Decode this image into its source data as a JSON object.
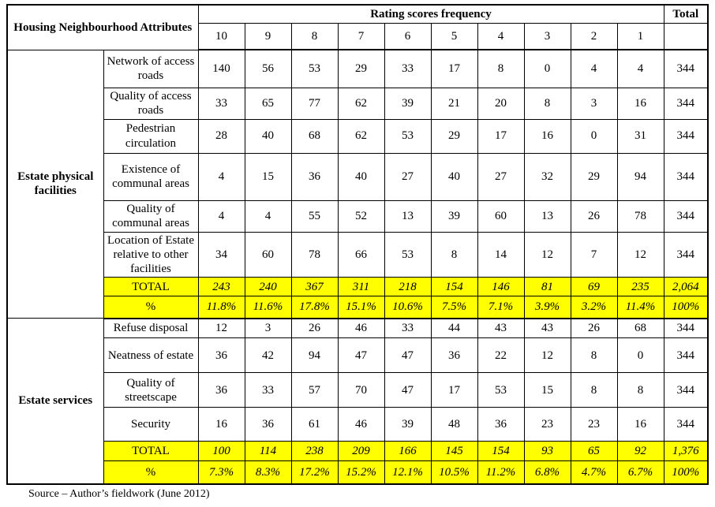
{
  "colors": {
    "highlight": "#FFFF00",
    "border": "#000000",
    "text": "#000000",
    "background": "#FFFFFF"
  },
  "table": {
    "header": {
      "attributes_label": "Housing Neighbourhood Attributes",
      "rating_label": "Rating scores frequency",
      "total_label": "Total",
      "rating_columns": [
        "10",
        "9",
        "8",
        "7",
        "6",
        "5",
        "4",
        "3",
        "2",
        "1"
      ]
    },
    "sections": [
      {
        "category": "Estate physical facilities",
        "rows": [
          {
            "label": "Network of access roads",
            "values": [
              "140",
              "56",
              "53",
              "29",
              "33",
              "17",
              "8",
              "0",
              "4",
              "4"
            ],
            "total": "344"
          },
          {
            "label": "Quality of access roads",
            "values": [
              "33",
              "65",
              "77",
              "62",
              "39",
              "21",
              "20",
              "8",
              "3",
              "16"
            ],
            "total": "344"
          },
          {
            "label": "Pedestrian circulation",
            "values": [
              "28",
              "40",
              "68",
              "62",
              "53",
              "29",
              "17",
              "16",
              "0",
              "31"
            ],
            "total": "344"
          },
          {
            "label": "Existence of communal areas",
            "values": [
              "4",
              "15",
              "36",
              "40",
              "27",
              "40",
              "27",
              "32",
              "29",
              "94"
            ],
            "total": "344"
          },
          {
            "label": "Quality of communal areas",
            "values": [
              "4",
              "4",
              "55",
              "52",
              "13",
              "39",
              "60",
              "13",
              "26",
              "78"
            ],
            "total": "344"
          },
          {
            "label": "Location of Estate relative to other facilities",
            "values": [
              "34",
              "60",
              "78",
              "66",
              "53",
              "8",
              "14",
              "12",
              "7",
              "12"
            ],
            "total": "344"
          }
        ],
        "total_row": {
          "label": "TOTAL",
          "values": [
            "243",
            "240",
            "367",
            "311",
            "218",
            "154",
            "146",
            "81",
            "69",
            "235"
          ],
          "total": "2,064"
        },
        "percent_row": {
          "label": "%",
          "values": [
            "11.8%",
            "11.6%",
            "17.8%",
            "15.1%",
            "10.6%",
            "7.5%",
            "7.1%",
            "3.9%",
            "3.2%",
            "11.4%"
          ],
          "total": "100%"
        }
      },
      {
        "category": "Estate services",
        "rows": [
          {
            "label": "Refuse disposal",
            "values": [
              "12",
              "3",
              "26",
              "46",
              "33",
              "44",
              "43",
              "43",
              "26",
              "68"
            ],
            "total": "344"
          },
          {
            "label": "Neatness of estate",
            "values": [
              "36",
              "42",
              "94",
              "47",
              "47",
              "36",
              "22",
              "12",
              "8",
              "0"
            ],
            "total": "344"
          },
          {
            "label": "Quality of streetscape",
            "values": [
              "36",
              "33",
              "57",
              "70",
              "47",
              "17",
              "53",
              "15",
              "8",
              "8"
            ],
            "total": "344"
          },
          {
            "label": "Security",
            "values": [
              "16",
              "36",
              "61",
              "46",
              "39",
              "48",
              "36",
              "23",
              "23",
              "16"
            ],
            "total": "344"
          }
        ],
        "total_row": {
          "label": "TOTAL",
          "values": [
            "100",
            "114",
            "238",
            "209",
            "166",
            "145",
            "154",
            "93",
            "65",
            "92"
          ],
          "total": "1,376"
        },
        "percent_row": {
          "label": "%",
          "values": [
            "7.3%",
            "8.3%",
            "17.2%",
            "15.2%",
            "12.1%",
            "10.5%",
            "11.2%",
            "6.8%",
            "4.7%",
            "6.7%"
          ],
          "total": "100%"
        }
      }
    ],
    "source_note": "Source – Author’s fieldwork (June 2012)"
  }
}
